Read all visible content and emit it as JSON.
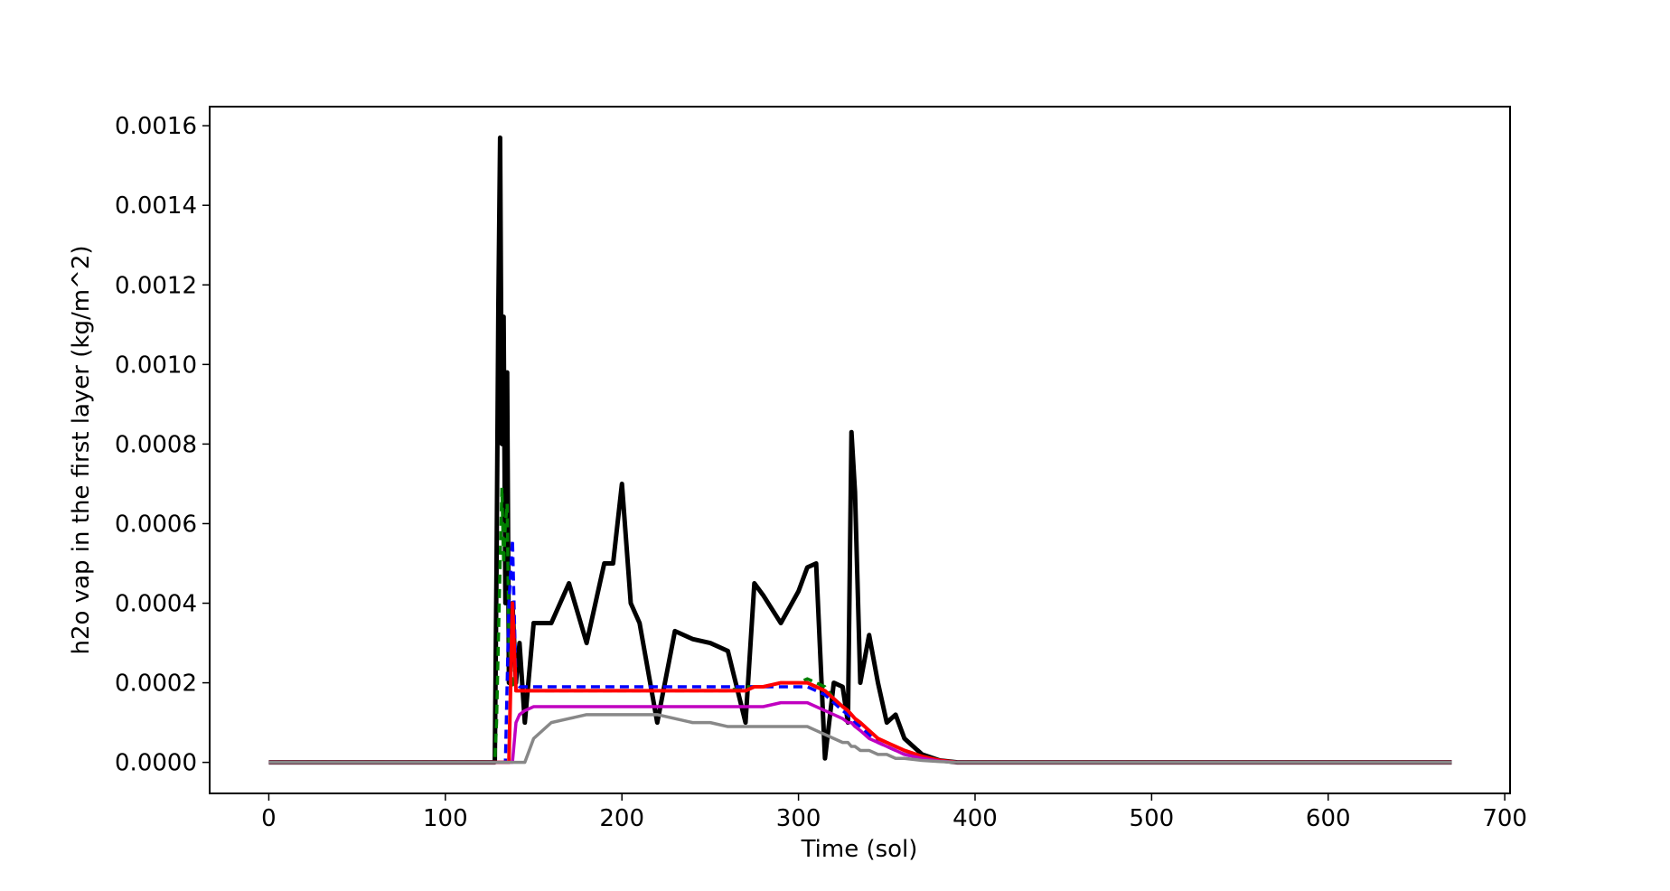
{
  "chart_data": {
    "type": "line",
    "xlabel": "Time (sol)",
    "ylabel": "h2o vap in the first layer (kg/m^2)",
    "x": [
      0,
      100,
      128,
      129,
      130,
      131,
      132,
      133,
      134,
      135,
      136,
      138,
      140,
      142,
      145,
      150,
      160,
      170,
      180,
      190,
      195,
      200,
      205,
      210,
      220,
      230,
      240,
      250,
      260,
      270,
      275,
      280,
      290,
      300,
      305,
      310,
      315,
      320,
      325,
      328,
      330,
      332,
      335,
      340,
      345,
      350,
      355,
      360,
      370,
      380,
      390,
      400,
      500,
      600,
      670
    ],
    "series": [
      {
        "color": "#000000",
        "linestyle": "solid",
        "linewidth": 5,
        "values": [
          0,
          0,
          0,
          0.0005,
          0.00114,
          0.00157,
          0.0008,
          0.00112,
          0.0004,
          0.00098,
          0.0002,
          0.0004,
          0.0002,
          0.0003,
          0.0001,
          0.00035,
          0.00035,
          0.00045,
          0.0003,
          0.0005,
          0.0005,
          0.0007,
          0.0004,
          0.00035,
          0.0001,
          0.00033,
          0.00031,
          0.0003,
          0.00028,
          0.0001,
          0.00045,
          0.00042,
          0.00035,
          0.00043,
          0.00049,
          0.0005,
          1e-05,
          0.0002,
          0.00019,
          0.0001,
          0.00083,
          0.00068,
          0.0002,
          0.00032,
          0.0002,
          0.0001,
          0.00012,
          6e-05,
          2e-05,
          5e-06,
          0,
          0,
          0,
          0,
          0
        ]
      },
      {
        "color": "#008000",
        "linestyle": "dashed",
        "linewidth": 3.5,
        "values": [
          0,
          0,
          0,
          0.0001,
          0.0003,
          0.0005,
          0.00069,
          0.0005,
          0.0006,
          0.00065,
          0.0003,
          0.0002,
          0.00018,
          0.00018,
          0.00018,
          0.00018,
          0.00018,
          0.00018,
          0.00018,
          0.00018,
          0.00018,
          0.00018,
          0.00018,
          0.00018,
          0.00018,
          0.00018,
          0.00018,
          0.00018,
          0.00018,
          0.00019,
          0.00019,
          0.00019,
          0.0002,
          0.0002,
          0.00021,
          0.0002,
          0.00019,
          0.00016,
          0.00014,
          0.00013,
          0.00012,
          0.00011,
          0.0001,
          8e-05,
          6e-05,
          5e-05,
          4e-05,
          3e-05,
          1.5e-05,
          5e-06,
          0,
          0,
          0,
          0,
          0
        ]
      },
      {
        "color": "#0000ff",
        "linestyle": "dashed",
        "linewidth": 3.5,
        "values": [
          0,
          0,
          0,
          0,
          0,
          0,
          0,
          0,
          0,
          0.0002,
          0.0004,
          0.00056,
          0.0002,
          0.00019,
          0.00019,
          0.00019,
          0.00019,
          0.00019,
          0.00019,
          0.00019,
          0.00019,
          0.00019,
          0.00019,
          0.00019,
          0.00019,
          0.00019,
          0.00019,
          0.00019,
          0.00019,
          0.00019,
          0.00019,
          0.00019,
          0.00019,
          0.00019,
          0.00019,
          0.00018,
          0.00017,
          0.00015,
          0.00013,
          0.00012,
          0.00011,
          0.0001,
          9e-05,
          7e-05,
          5e-05,
          4e-05,
          3e-05,
          2e-05,
          1e-05,
          4e-06,
          0,
          0,
          0,
          0,
          0
        ]
      },
      {
        "color": "#ff0000",
        "linestyle": "solid",
        "linewidth": 4,
        "values": [
          0,
          0,
          0,
          0,
          0,
          0,
          0,
          0,
          0,
          0,
          0,
          0.0004,
          0.00018,
          0.00018,
          0.00018,
          0.00018,
          0.00018,
          0.00018,
          0.00018,
          0.00018,
          0.00018,
          0.00018,
          0.00018,
          0.00018,
          0.00018,
          0.00018,
          0.00018,
          0.00018,
          0.00018,
          0.00018,
          0.00019,
          0.00019,
          0.0002,
          0.0002,
          0.0002,
          0.00019,
          0.00018,
          0.00016,
          0.00014,
          0.00013,
          0.00012,
          0.00011,
          0.0001,
          8e-05,
          6e-05,
          5e-05,
          4e-05,
          3e-05,
          1.5e-05,
          5e-06,
          0,
          0,
          0,
          0,
          0
        ]
      },
      {
        "color": "#c000c0",
        "linestyle": "solid",
        "linewidth": 3.5,
        "values": [
          0,
          0,
          0,
          0,
          0,
          0,
          0,
          0,
          0,
          0,
          0,
          0,
          0.0001,
          0.00012,
          0.00013,
          0.00014,
          0.00014,
          0.00014,
          0.00014,
          0.00014,
          0.00014,
          0.00014,
          0.00014,
          0.00014,
          0.00014,
          0.00014,
          0.00014,
          0.00014,
          0.00014,
          0.00014,
          0.00014,
          0.00014,
          0.00015,
          0.00015,
          0.00015,
          0.00014,
          0.00013,
          0.00012,
          0.00011,
          0.0001,
          0.0001,
          9e-05,
          8e-05,
          6e-05,
          5e-05,
          4e-05,
          3e-05,
          2e-05,
          1e-05,
          3e-06,
          0,
          0,
          0,
          0,
          0
        ]
      },
      {
        "color": "#888888",
        "linestyle": "solid",
        "linewidth": 3.5,
        "values": [
          0,
          0,
          0,
          0,
          0,
          0,
          0,
          0,
          0,
          0,
          0,
          0,
          0,
          0,
          0,
          6e-05,
          0.0001,
          0.00011,
          0.00012,
          0.00012,
          0.00012,
          0.00012,
          0.00012,
          0.00012,
          0.00012,
          0.00011,
          0.0001,
          0.0001,
          9e-05,
          9e-05,
          9e-05,
          9e-05,
          9e-05,
          9e-05,
          9e-05,
          8e-05,
          7e-05,
          6e-05,
          5e-05,
          5e-05,
          4e-05,
          4e-05,
          3e-05,
          3e-05,
          2e-05,
          2e-05,
          1e-05,
          1e-05,
          5e-06,
          2e-06,
          0,
          0,
          0,
          0,
          0
        ]
      }
    ],
    "xlim": [
      -33.5,
      703
    ],
    "xticks": [
      0,
      100,
      200,
      300,
      400,
      500,
      600,
      700
    ],
    "ylim": [
      -7.8e-05,
      0.001648
    ],
    "yticks": [
      {
        "value": 0,
        "label": "0.0000"
      },
      {
        "value": 0.0002,
        "label": "0.0002"
      },
      {
        "value": 0.0004,
        "label": "0.0004"
      },
      {
        "value": 0.0006,
        "label": "0.0006"
      },
      {
        "value": 0.0008,
        "label": "0.0008"
      },
      {
        "value": 0.001,
        "label": "0.0010"
      },
      {
        "value": 0.0012,
        "label": "0.0012"
      },
      {
        "value": 0.0014,
        "label": "0.0014"
      },
      {
        "value": 0.0016,
        "label": "0.0016"
      }
    ]
  }
}
